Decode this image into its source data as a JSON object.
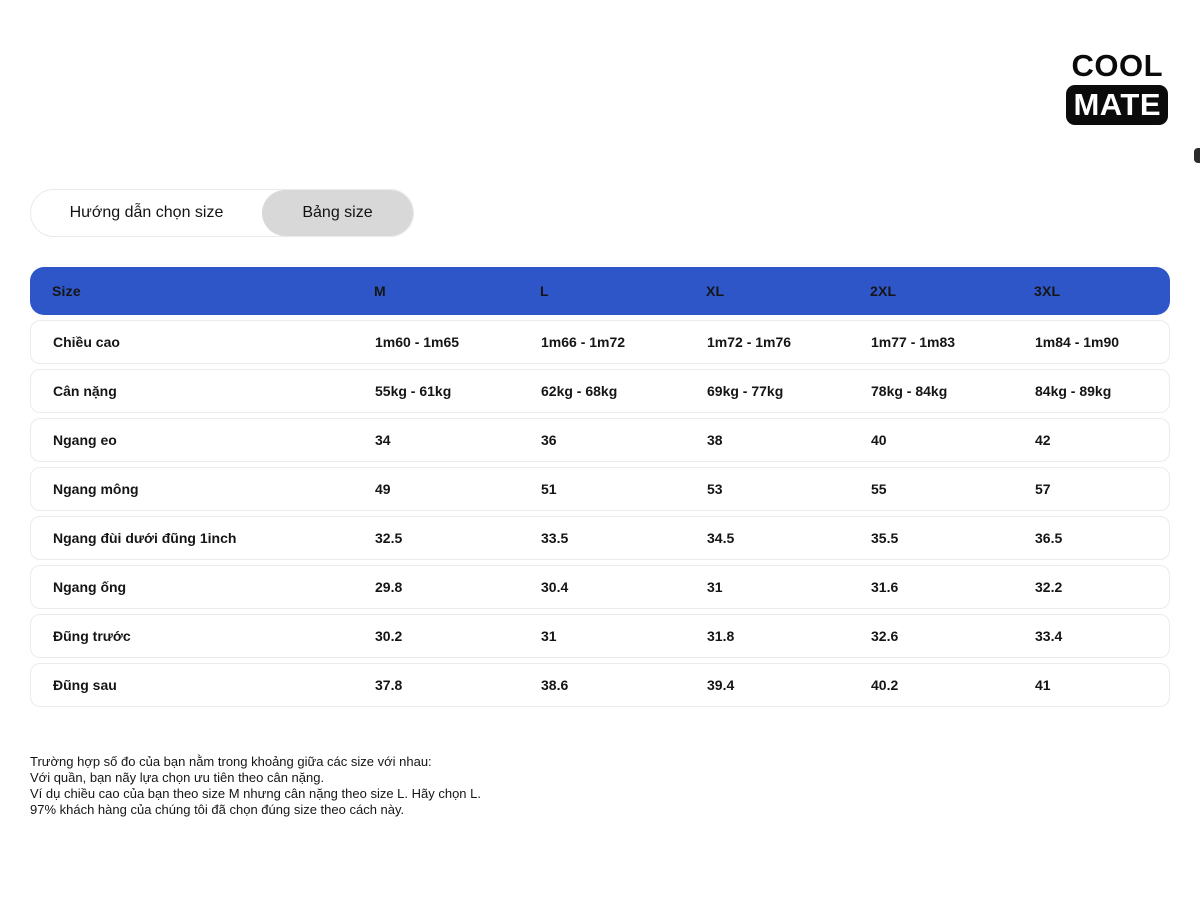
{
  "brand": {
    "line1": "COOL",
    "line2": "MATE"
  },
  "tabs": [
    {
      "label": "Hướng dẫn chọn size",
      "active": false
    },
    {
      "label": "Bảng size",
      "active": true
    }
  ],
  "table": {
    "header": [
      "Size",
      "M",
      "L",
      "XL",
      "2XL",
      "3XL"
    ],
    "rows": [
      {
        "label": "Chiều cao",
        "values": [
          "1m60 - 1m65",
          "1m66 - 1m72",
          "1m72 - 1m76",
          "1m77 - 1m83",
          "1m84 - 1m90"
        ]
      },
      {
        "label": "Cân nặng",
        "values": [
          "55kg - 61kg",
          "62kg - 68kg",
          "69kg - 77kg",
          "78kg - 84kg",
          "84kg - 89kg"
        ]
      },
      {
        "label": "Ngang eo",
        "values": [
          "34",
          "36",
          "38",
          "40",
          "42"
        ]
      },
      {
        "label": "Ngang mông",
        "values": [
          "49",
          "51",
          "53",
          "55",
          "57"
        ]
      },
      {
        "label": "Ngang đùi dưới đũng 1inch",
        "values": [
          "32.5",
          "33.5",
          "34.5",
          "35.5",
          "36.5"
        ]
      },
      {
        "label": "Ngang ống",
        "values": [
          "29.8",
          "30.4",
          "31",
          "31.6",
          "32.2"
        ]
      },
      {
        "label": "Đũng trước",
        "values": [
          "30.2",
          "31",
          "31.8",
          "32.6",
          "33.4"
        ]
      },
      {
        "label": "Đũng sau",
        "values": [
          "37.8",
          "38.6",
          "39.4",
          "40.2",
          "41"
        ]
      }
    ]
  },
  "footnote": {
    "lines": [
      "Trường hợp số đo của bạn nằm trong khoảng giữa các size với nhau:",
      "Với quần, bạn nãy lựa chọn ưu tiên theo cân nặng.",
      "Ví dụ chiều cao của bạn theo size M nhưng cân nặng theo size L. Hãy chọn L.",
      "97% khách hàng của chúng tôi đã chọn đúng size theo cách này."
    ]
  },
  "colors": {
    "header_bg": "#2f56c9",
    "header_text": "#ffffff",
    "active_tab_bg": "#d8d8d8",
    "row_border": "#ebebeb",
    "text": "#151515",
    "logo_bg": "#0b0b0b"
  }
}
